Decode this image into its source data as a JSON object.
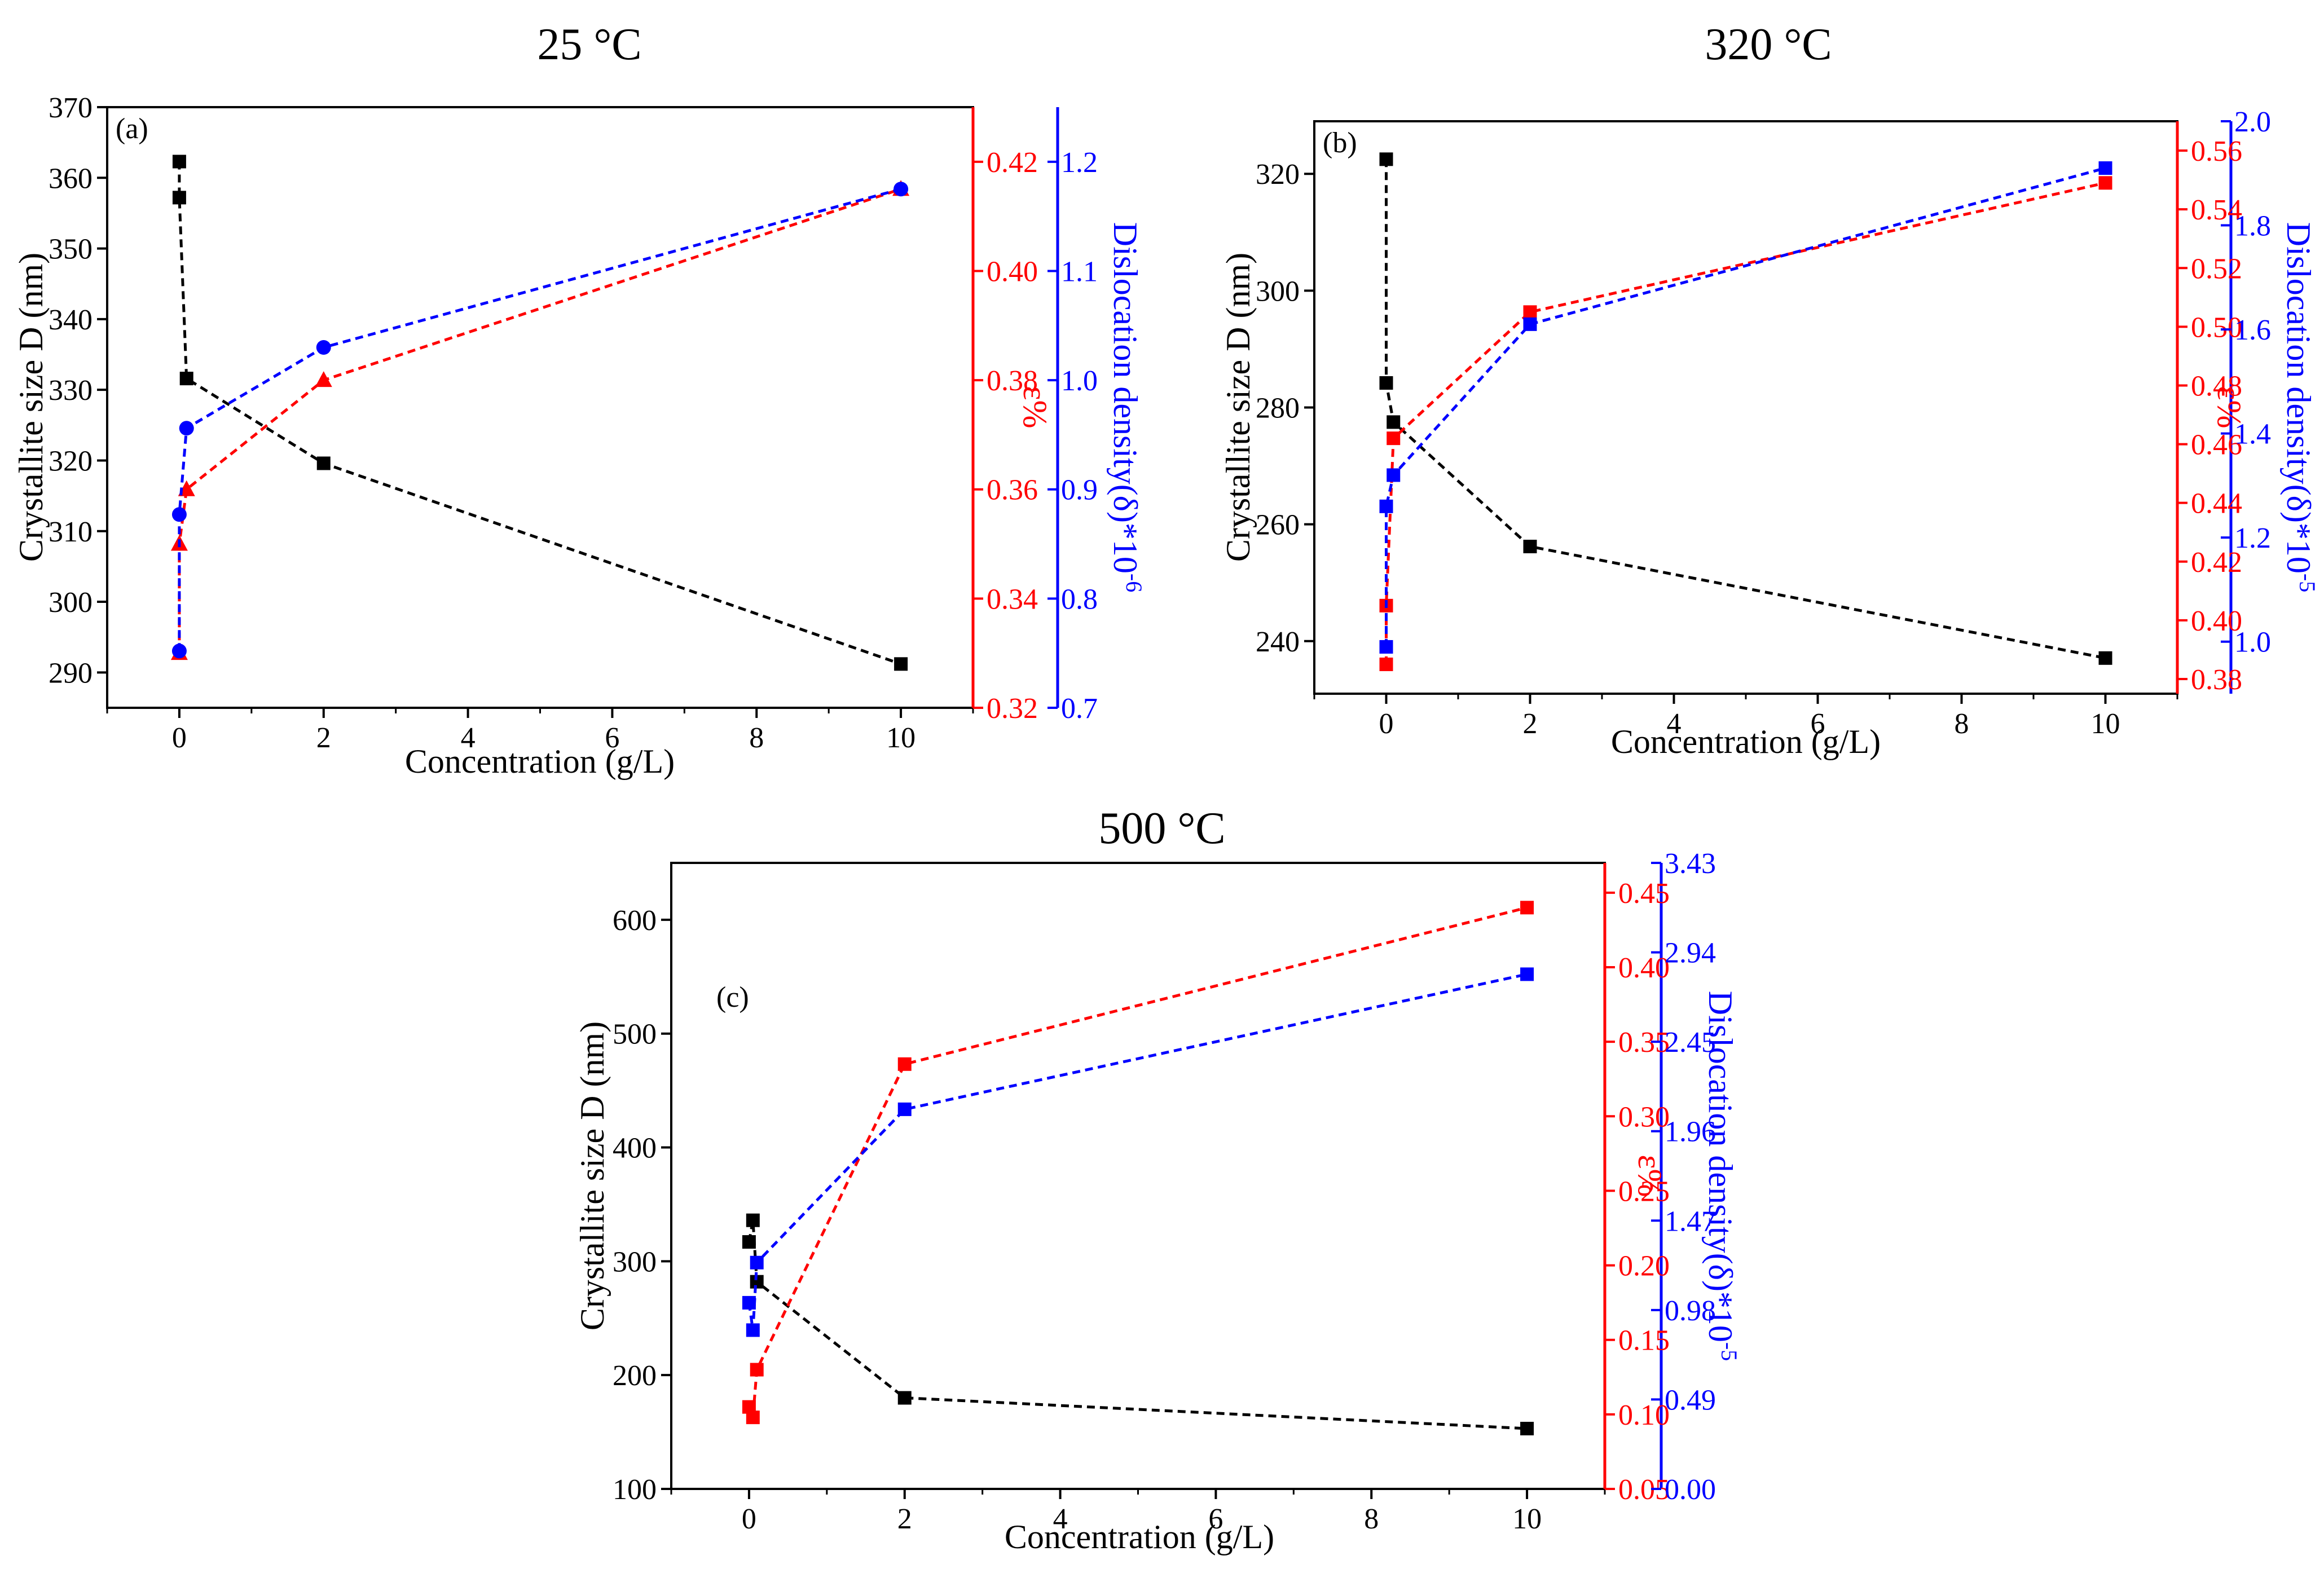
{
  "figure": {
    "colors": {
      "size": "#000000",
      "strain": "#ff0000",
      "dislocation": "#0000ff"
    }
  },
  "chart_data": [
    {
      "type": "scatter",
      "panel": "(a)",
      "title": "25 °C",
      "xlabel": "Concentration (g/L)",
      "ylabel": "Crystallite size D (nm)",
      "ylabel_right1": "ε%",
      "ylabel_right2_main": "Dislocation density(δ)*10",
      "ylabel_right2_exp": "-6",
      "xlim": [
        -1,
        11
      ],
      "ylim": [
        285,
        370
      ],
      "ylim_right1": [
        0.32,
        0.43
      ],
      "ylim_right2": [
        0.7,
        1.25
      ],
      "xticks": [
        0,
        2,
        4,
        6,
        8,
        10
      ],
      "xtick_labels": [
        "0",
        "2",
        "4",
        "6",
        "8",
        "10"
      ],
      "yticks": [
        290,
        300,
        310,
        320,
        330,
        340,
        350,
        360,
        370
      ],
      "ytick_labels": [
        "290",
        "300",
        "310",
        "320",
        "330",
        "340",
        "350",
        "360",
        "370"
      ],
      "yticks_right1": [
        0.32,
        0.34,
        0.36,
        0.38,
        0.4,
        0.42
      ],
      "ytick_labels_right1": [
        "0.32",
        "0.34",
        "0.36",
        "0.38",
        "0.40",
        "0.42"
      ],
      "yticks_right2": [
        0.7,
        0.8,
        0.9,
        1.0,
        1.1,
        1.2
      ],
      "ytick_labels_right2": [
        "0.7",
        "0.8",
        "0.9",
        "1.0",
        "1.1",
        "1.2"
      ],
      "series": [
        {
          "name": "Crystallite size D",
          "axis": "left",
          "marker": "square",
          "color": "#000000",
          "x": [
            0,
            0,
            0.1,
            2,
            10
          ],
          "y": [
            362.3,
            357.2,
            331.6,
            319.6,
            291.2
          ]
        },
        {
          "name": "ε%",
          "axis": "right1",
          "marker": "triangle",
          "color": "#ff0000",
          "x": [
            0,
            0,
            0.1,
            2,
            10
          ],
          "y": [
            0.33,
            0.35,
            0.36,
            0.38,
            0.415
          ]
        },
        {
          "name": "Dislocation density",
          "axis": "right2",
          "marker": "circle",
          "color": "#0000ff",
          "x": [
            0,
            0,
            0.1,
            2,
            10
          ],
          "y": [
            0.752,
            0.877,
            0.956,
            1.03,
            1.175
          ]
        }
      ]
    },
    {
      "type": "scatter",
      "panel": "(b)",
      "title": "320 °C",
      "xlabel": "Concentration (g/L)",
      "ylabel": "Crystallite size D (nm)",
      "ylabel_right1": "ε%",
      "ylabel_right2_main": "Dislocation density(δ)*10",
      "ylabel_right2_exp": "-5",
      "xlim": [
        -1,
        11
      ],
      "ylim": [
        231,
        329
      ],
      "ylim_right1": [
        0.375,
        0.57
      ],
      "ylim_right2": [
        0.9,
        2.0
      ],
      "xticks": [
        0,
        2,
        4,
        6,
        8,
        10
      ],
      "xtick_labels": [
        "0",
        "2",
        "4",
        "6",
        "8",
        "10"
      ],
      "yticks": [
        240,
        260,
        280,
        300,
        320
      ],
      "ytick_labels": [
        "240",
        "260",
        "280",
        "300",
        "320"
      ],
      "yticks_right1": [
        0.38,
        0.4,
        0.42,
        0.44,
        0.46,
        0.48,
        0.5,
        0.52,
        0.54,
        0.56
      ],
      "ytick_labels_right1": [
        "0.38",
        "0.40",
        "0.42",
        "0.44",
        "0.46",
        "0.48",
        "0.50",
        "0.52",
        "0.54",
        "0.56"
      ],
      "yticks_right2": [
        1.0,
        1.2,
        1.4,
        1.6,
        1.8,
        2.0
      ],
      "ytick_labels_right2": [
        "1.0",
        "1.2",
        "1.4",
        "1.6",
        "1.8",
        "2.0"
      ],
      "series": [
        {
          "name": "Crystallite size D",
          "axis": "left",
          "marker": "square",
          "color": "#000000",
          "x": [
            0,
            0,
            0.1,
            2,
            10
          ],
          "y": [
            322.5,
            284.2,
            277.5,
            256.2,
            237.1
          ]
        },
        {
          "name": "ε%",
          "axis": "right1",
          "marker": "square",
          "color": "#ff0000",
          "x": [
            0,
            0,
            0.1,
            2,
            10
          ],
          "y": [
            0.385,
            0.405,
            0.462,
            0.505,
            0.549
          ]
        },
        {
          "name": "Dislocation density",
          "axis": "right2",
          "marker": "square",
          "color": "#0000ff",
          "x": [
            0,
            0,
            0.1,
            2,
            10
          ],
          "y": [
            0.99,
            1.26,
            1.32,
            1.61,
            1.91
          ]
        }
      ]
    },
    {
      "type": "scatter",
      "panel": "(c)",
      "title": "500 °C",
      "xlabel": "Concentration (g/L)",
      "ylabel": "Crystallite size D (nm)",
      "ylabel_right1": "ε%",
      "ylabel_right2_main": "Dislocation density(δ)*10",
      "ylabel_right2_exp": "-5",
      "xlim": [
        -1,
        11
      ],
      "ylim": [
        100,
        650
      ],
      "ylim_right1": [
        0.05,
        0.47
      ],
      "ylim_right2": [
        0.0,
        3.43
      ],
      "xticks": [
        0,
        2,
        4,
        6,
        8,
        10
      ],
      "xtick_labels": [
        "0",
        "2",
        "4",
        "6",
        "8",
        "10"
      ],
      "yticks": [
        100,
        200,
        300,
        400,
        500,
        600
      ],
      "ytick_labels": [
        "100",
        "200",
        "300",
        "400",
        "500",
        "600"
      ],
      "yticks_right1": [
        0.05,
        0.1,
        0.15,
        0.2,
        0.25,
        0.3,
        0.35,
        0.4,
        0.45
      ],
      "ytick_labels_right1": [
        "0.05",
        "0.10",
        "0.15",
        "0.20",
        "0.25",
        "0.30",
        "0.35",
        "0.40",
        "0.45"
      ],
      "yticks_right2": [
        0.0,
        0.49,
        0.98,
        1.47,
        1.96,
        2.45,
        2.94,
        3.43
      ],
      "ytick_labels_right2": [
        "0.00",
        "0.49",
        "0.98",
        "1.47",
        "1.96",
        "2.45",
        "2.94",
        "3.43"
      ],
      "series": [
        {
          "name": "Crystallite size D",
          "axis": "left",
          "marker": "square",
          "color": "#000000",
          "x": [
            0,
            0.05,
            0.1,
            2,
            10
          ],
          "y": [
            317,
            336,
            282,
            180,
            153
          ]
        },
        {
          "name": "ε%",
          "axis": "right1",
          "marker": "square",
          "color": "#ff0000",
          "x": [
            0,
            0.05,
            0.1,
            2,
            10
          ],
          "y": [
            0.105,
            0.098,
            0.13,
            0.335,
            0.44
          ]
        },
        {
          "name": "Dislocation density",
          "axis": "right2",
          "marker": "square",
          "color": "#0000ff",
          "x": [
            0,
            0.05,
            0.1,
            2,
            10
          ],
          "y": [
            1.02,
            0.87,
            1.24,
            2.08,
            2.82
          ]
        }
      ]
    }
  ]
}
